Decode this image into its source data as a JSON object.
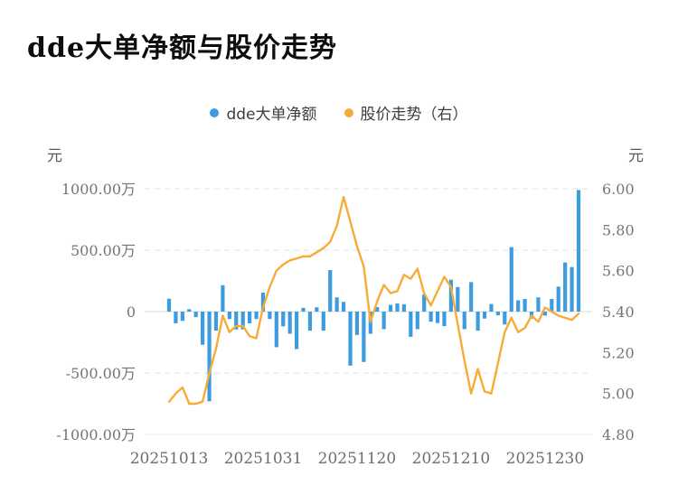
{
  "title": "dde大单净额与股价走势",
  "legend": [
    {
      "label": "dde大单净额",
      "color": "#3D9BE0"
    },
    {
      "label": "股价走势（右）",
      "color": "#F7AC38"
    }
  ],
  "left_axis_unit": "元",
  "right_axis_unit": "元",
  "chart_data": {
    "type": "bar+line",
    "title": "dde大单净额与股价走势",
    "bar_series": {
      "name": "dde大单净额",
      "axis": "left",
      "unit": "万元",
      "values": [
        105,
        -95,
        -75,
        20,
        -45,
        -270,
        -730,
        -155,
        215,
        -60,
        -145,
        -145,
        -95,
        -60,
        155,
        -60,
        -290,
        -120,
        -180,
        -305,
        30,
        -155,
        35,
        -155,
        338,
        116,
        79,
        -440,
        -190,
        -410,
        -180,
        37,
        -143,
        55,
        67,
        60,
        -205,
        -143,
        140,
        -82,
        -93,
        -118,
        260,
        200,
        -143,
        240,
        -155,
        -57,
        62,
        -30,
        -105,
        525,
        92,
        103,
        -57,
        116,
        -32,
        103,
        203,
        400,
        363,
        990
      ]
    },
    "line_series": {
      "name": "股价走势（右）",
      "axis": "right",
      "unit": "元",
      "values": [
        4.96,
        5.0,
        5.03,
        4.95,
        4.95,
        4.96,
        5.1,
        5.22,
        5.38,
        5.3,
        5.33,
        5.33,
        5.28,
        5.27,
        5.42,
        5.52,
        5.6,
        5.63,
        5.65,
        5.66,
        5.67,
        5.67,
        5.69,
        5.71,
        5.74,
        5.82,
        5.96,
        5.84,
        5.72,
        5.62,
        5.35,
        5.45,
        5.53,
        5.49,
        5.5,
        5.58,
        5.56,
        5.61,
        5.49,
        5.43,
        5.5,
        5.57,
        5.52,
        5.34,
        5.16,
        5.0,
        5.12,
        5.01,
        5.0,
        5.15,
        5.3,
        5.37,
        5.3,
        5.32,
        5.38,
        5.35,
        5.42,
        5.4,
        5.38,
        5.37,
        5.36,
        5.39
      ]
    },
    "left_axis": {
      "unit": "元",
      "tick_labels": [
        "1000.00万",
        "500.00万",
        "0",
        "-500.00万",
        "-1000.00万"
      ],
      "tick_values_wan": [
        1000,
        500,
        0,
        -500,
        -1000
      ],
      "range_wan": [
        -1000,
        1000
      ]
    },
    "right_axis": {
      "unit": "元",
      "tick_labels": [
        "6.00",
        "5.80",
        "5.60",
        "5.40",
        "5.20",
        "5.00",
        "4.80"
      ],
      "tick_values": [
        6.0,
        5.8,
        5.6,
        5.4,
        5.2,
        5.0,
        4.8
      ],
      "range": [
        4.8,
        6.0
      ]
    },
    "x_axis": {
      "tick_labels": [
        "20251013",
        "20251031",
        "20251120",
        "20251210",
        "20251230"
      ],
      "tick_indices": [
        0,
        14,
        28,
        42,
        56
      ],
      "n_points": 62
    },
    "grid": "horizontal dashed",
    "legend_position": "top-center",
    "colors": {
      "bar": "#3D9BE0",
      "line": "#F7AC38",
      "grid": "#e2e2e2",
      "zero_line": "#d9d9d9",
      "tick_text": "#757575"
    }
  }
}
